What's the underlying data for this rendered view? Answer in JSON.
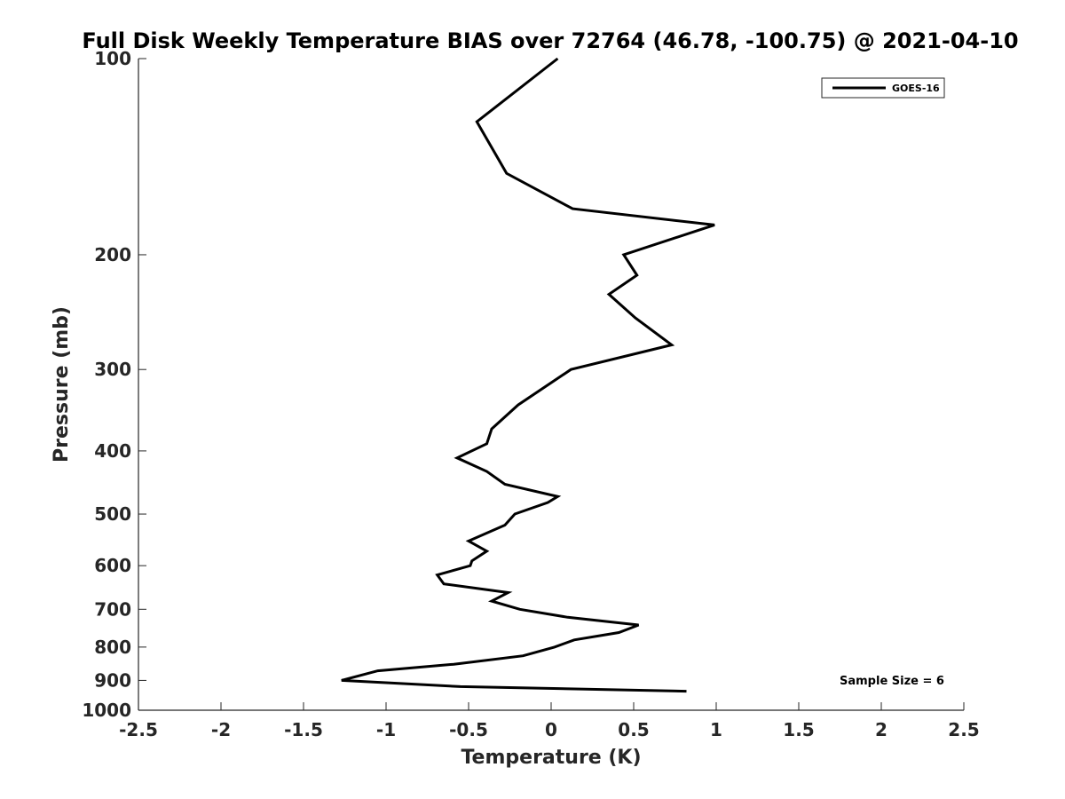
{
  "chart_data": {
    "type": "line",
    "title": "Full Disk Weekly Temperature BIAS over 72764 (46.78, -100.75) @ 2021-04-10",
    "xlabel": "Temperature (K)",
    "ylabel": "Pressure (mb)",
    "xlim": [
      -2.5,
      2.5
    ],
    "ylim": [
      100,
      1000
    ],
    "y_scale": "log",
    "y_reversed": true,
    "grid": false,
    "legend_position": "top-right",
    "x_ticks": [
      "-2.5",
      "-2",
      "-1.5",
      "-1",
      "-0.5",
      "0",
      "0.5",
      "1",
      "1.5",
      "2",
      "2.5"
    ],
    "y_ticks": [
      "100",
      "200",
      "300",
      "400",
      "500",
      "600",
      "700",
      "800",
      "900",
      "1000"
    ],
    "series": [
      {
        "name": "GOES-16",
        "color": "#000000",
        "points": [
          {
            "x": 0.04,
            "y": 100
          },
          {
            "x": -0.45,
            "y": 125
          },
          {
            "x": -0.27,
            "y": 150
          },
          {
            "x": 0.13,
            "y": 170
          },
          {
            "x": 0.99,
            "y": 180
          },
          {
            "x": 0.44,
            "y": 200
          },
          {
            "x": 0.52,
            "y": 215
          },
          {
            "x": 0.35,
            "y": 230
          },
          {
            "x": 0.51,
            "y": 250
          },
          {
            "x": 0.73,
            "y": 275
          },
          {
            "x": 0.12,
            "y": 300
          },
          {
            "x": -0.2,
            "y": 340
          },
          {
            "x": -0.36,
            "y": 370
          },
          {
            "x": -0.39,
            "y": 390
          },
          {
            "x": -0.57,
            "y": 410
          },
          {
            "x": -0.39,
            "y": 430
          },
          {
            "x": -0.28,
            "y": 450
          },
          {
            "x": 0.04,
            "y": 470
          },
          {
            "x": -0.02,
            "y": 480
          },
          {
            "x": -0.22,
            "y": 500
          },
          {
            "x": -0.28,
            "y": 520
          },
          {
            "x": -0.5,
            "y": 550
          },
          {
            "x": -0.39,
            "y": 570
          },
          {
            "x": -0.48,
            "y": 590
          },
          {
            "x": -0.49,
            "y": 600
          },
          {
            "x": -0.69,
            "y": 620
          },
          {
            "x": -0.65,
            "y": 640
          },
          {
            "x": -0.26,
            "y": 660
          },
          {
            "x": -0.36,
            "y": 680
          },
          {
            "x": -0.19,
            "y": 700
          },
          {
            "x": 0.1,
            "y": 720
          },
          {
            "x": 0.53,
            "y": 740
          },
          {
            "x": 0.41,
            "y": 760
          },
          {
            "x": 0.14,
            "y": 780
          },
          {
            "x": 0.02,
            "y": 800
          },
          {
            "x": -0.17,
            "y": 825
          },
          {
            "x": -0.59,
            "y": 850
          },
          {
            "x": -1.05,
            "y": 870
          },
          {
            "x": -1.27,
            "y": 900
          },
          {
            "x": -0.55,
            "y": 920
          },
          {
            "x": 0.82,
            "y": 935
          }
        ]
      }
    ],
    "annotations": [
      {
        "text": "Sample Size = 6",
        "position": "bottom-right"
      }
    ]
  }
}
